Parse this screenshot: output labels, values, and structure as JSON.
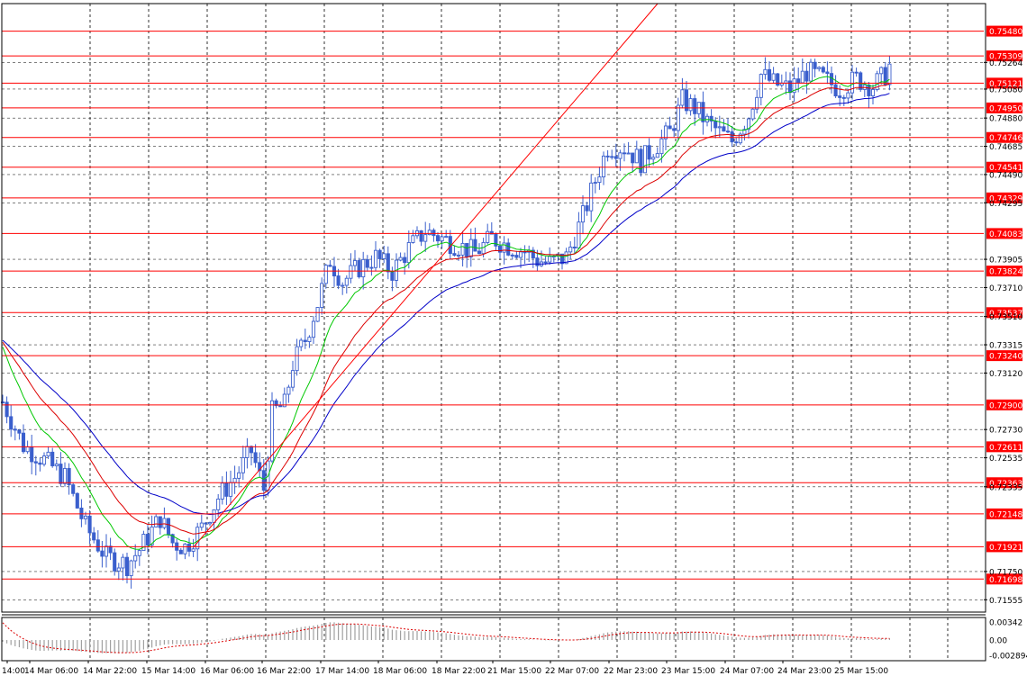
{
  "chart_data": {
    "type": "candlestick",
    "colors": {
      "background": "#ffffff",
      "candle": "#3a5fcd",
      "grid": "#000000",
      "level_line": "#ff0000",
      "level_tag_bg": "#ff0000",
      "level_tag_text": "#ffffff",
      "ma_fast": "#00c800",
      "ma_mid": "#dc0000",
      "ma_slow": "#0000c8",
      "trend_line": "#ff0000",
      "osc_hist": "#a0a0a0",
      "osc_signal": "#dc0000"
    },
    "main_ylim": [
      0.7147,
      0.7567
    ],
    "price_ticks": [
      "0.75264",
      "0.75080",
      "0.74880",
      "0.74685",
      "0.74490",
      "0.74295",
      "0.73905",
      "0.73710",
      "0.73510",
      "0.73315",
      "0.73120",
      "0.72730",
      "0.72535",
      "0.72335",
      "0.71750",
      "0.71555"
    ],
    "levels": [
      "0.75480",
      "0.75309",
      "0.75121",
      "0.74950",
      "0.74746",
      "0.74541",
      "0.74329",
      "0.74083",
      "0.73824",
      "0.73537",
      "0.73240",
      "0.72900",
      "0.72611",
      "0.72363",
      "0.72148",
      "0.71921",
      "0.71698"
    ],
    "time_labels": [
      "14:00",
      "14 Mar 06:00",
      "14 Mar 22:00",
      "15 Mar 14:00",
      "16 Mar 06:00",
      "16 Mar 22:00",
      "17 Mar 14:00",
      "18 Mar 06:00",
      "18 Mar 22:00",
      "21 Mar 15:00",
      "22 Mar 07:00",
      "22 Mar 23:00",
      "23 Mar 15:00",
      "24 Mar 07:00",
      "24 Mar 23:00",
      "25 Mar 15:00"
    ],
    "close_path": [
      [
        0,
        0.7292
      ],
      [
        5,
        0.7262
      ],
      [
        10,
        0.7252
      ],
      [
        15,
        0.724
      ],
      [
        20,
        0.7206
      ],
      [
        25,
        0.7185
      ],
      [
        30,
        0.718
      ],
      [
        33,
        0.719
      ],
      [
        38,
        0.7212
      ],
      [
        41,
        0.7195
      ],
      [
        44,
        0.7192
      ],
      [
        48,
        0.7205
      ],
      [
        52,
        0.7226
      ],
      [
        56,
        0.724
      ],
      [
        60,
        0.7258
      ],
      [
        63,
        0.7232
      ],
      [
        65,
        0.7285
      ],
      [
        68,
        0.729
      ],
      [
        70,
        0.7318
      ],
      [
        73,
        0.7335
      ],
      [
        76,
        0.736
      ],
      [
        79,
        0.739
      ],
      [
        82,
        0.7375
      ],
      [
        86,
        0.7385
      ],
      [
        90,
        0.7392
      ],
      [
        94,
        0.7382
      ],
      [
        98,
        0.7398
      ],
      [
        102,
        0.741
      ],
      [
        106,
        0.7405
      ],
      [
        110,
        0.74
      ],
      [
        114,
        0.7395
      ],
      [
        118,
        0.7405
      ],
      [
        122,
        0.74
      ],
      [
        126,
        0.7396
      ],
      [
        129,
        0.739
      ],
      [
        132,
        0.7388
      ],
      [
        136,
        0.7392
      ],
      [
        140,
        0.742
      ],
      [
        143,
        0.7445
      ],
      [
        146,
        0.7468
      ],
      [
        150,
        0.7468
      ],
      [
        154,
        0.7458
      ],
      [
        158,
        0.747
      ],
      [
        161,
        0.7478
      ],
      [
        164,
        0.75
      ],
      [
        167,
        0.7495
      ],
      [
        170,
        0.7485
      ],
      [
        173,
        0.7478
      ],
      [
        176,
        0.7472
      ],
      [
        180,
        0.749
      ],
      [
        183,
        0.7518
      ],
      [
        186,
        0.7512
      ],
      [
        190,
        0.7508
      ],
      [
        194,
        0.752
      ],
      [
        198,
        0.7515
      ],
      [
        202,
        0.7508
      ],
      [
        206,
        0.7515
      ],
      [
        210,
        0.751
      ],
      [
        213,
        0.7518
      ],
      [
        214,
        0.7524
      ]
    ],
    "osc_ylim": [
      -0.002894,
      0.00342
    ],
    "osc_ticks": [
      "0.00342",
      "0.00",
      "-0.002894"
    ]
  }
}
